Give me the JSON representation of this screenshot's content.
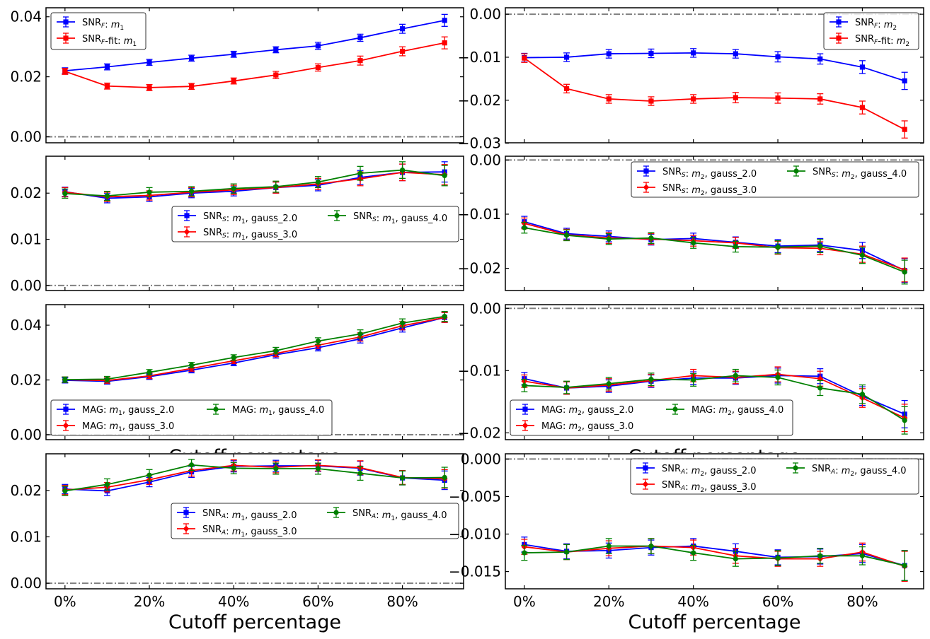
{
  "figure": {
    "x_ticks": [
      "0%",
      "20%",
      "40%",
      "60%",
      "80%"
    ],
    "xlabel": "Cutoff percentage"
  },
  "chart_data": [
    {
      "type": "line",
      "x": [
        0,
        10,
        20,
        30,
        40,
        50,
        60,
        70,
        80,
        90
      ],
      "ylim": [
        -0.002,
        0.043
      ],
      "yticks": [
        "0.00",
        "0.02",
        "0.04"
      ],
      "ytick_values": [
        0.0,
        0.02,
        0.04
      ],
      "legend_position": "upper-left",
      "series": [
        {
          "name": "SNR_F: m_1",
          "color": "#0000ff",
          "marker": "square",
          "values": [
            0.022,
            0.0233,
            0.0248,
            0.0262,
            0.0275,
            0.029,
            0.0303,
            0.033,
            0.036,
            0.0388
          ],
          "errors": [
            0.001,
            0.001,
            0.001,
            0.001,
            0.001,
            0.001,
            0.0012,
            0.0012,
            0.0015,
            0.002
          ]
        },
        {
          "name": "SNR_F-fit: m_1",
          "color": "#ff0000",
          "marker": "square",
          "values": [
            0.0218,
            0.0169,
            0.0164,
            0.0168,
            0.0186,
            0.0206,
            0.0231,
            0.0254,
            0.0285,
            0.0313
          ],
          "errors": [
            0.001,
            0.001,
            0.001,
            0.001,
            0.001,
            0.0012,
            0.0012,
            0.0015,
            0.0015,
            0.002
          ]
        }
      ]
    },
    {
      "type": "line",
      "x": [
        0,
        10,
        20,
        30,
        40,
        50,
        60,
        70,
        80,
        90
      ],
      "ylim": [
        -0.0299,
        0.0015
      ],
      "yticks": [
        "0.00",
        "−0.01",
        "−0.02",
        "−0.03"
      ],
      "ytick_values": [
        0.0,
        -0.01,
        -0.02,
        -0.03
      ],
      "legend_position": "upper-right",
      "series": [
        {
          "name": "SNR_F: m_2",
          "color": "#0000ff",
          "marker": "square",
          "values": [
            -0.0101,
            -0.01,
            -0.0092,
            -0.0091,
            -0.009,
            -0.0092,
            -0.0099,
            -0.0104,
            -0.0123,
            -0.0155
          ],
          "errors": [
            0.001,
            0.001,
            0.001,
            0.001,
            0.001,
            0.001,
            0.0012,
            0.0012,
            0.0015,
            0.002
          ]
        },
        {
          "name": "SNR_F-fit: m_2",
          "color": "#ff0000",
          "marker": "square",
          "values": [
            -0.0102,
            -0.0173,
            -0.0197,
            -0.0202,
            -0.0197,
            -0.0194,
            -0.0195,
            -0.0197,
            -0.0217,
            -0.0268
          ],
          "errors": [
            0.001,
            0.001,
            0.001,
            0.001,
            0.001,
            0.0012,
            0.0012,
            0.0012,
            0.0015,
            0.002
          ]
        }
      ]
    },
    {
      "type": "line",
      "x": [
        0,
        10,
        20,
        30,
        40,
        50,
        60,
        70,
        80,
        90
      ],
      "ylim": [
        -0.0011,
        0.028
      ],
      "yticks": [
        "0.00",
        "0.01",
        "0.02"
      ],
      "ytick_values": [
        0.0,
        0.01,
        0.02
      ],
      "legend_position": "center-right",
      "legend_cols": 2,
      "series": [
        {
          "name": "SNR_S: m_1, gauss_2.0",
          "color": "#0000ff",
          "marker": "square",
          "values": [
            0.0203,
            0.0189,
            0.0192,
            0.02,
            0.0204,
            0.0212,
            0.0217,
            0.0234,
            0.0245,
            0.0246
          ],
          "errors": [
            0.001,
            0.001,
            0.001,
            0.001,
            0.001,
            0.0012,
            0.0012,
            0.0015,
            0.0018,
            0.0022
          ]
        },
        {
          "name": "SNR_S: m_1, gauss_3.0",
          "color": "#ff0000",
          "marker": "diamond",
          "values": [
            0.0202,
            0.0192,
            0.0195,
            0.0202,
            0.0207,
            0.0212,
            0.022,
            0.0231,
            0.0245,
            0.024
          ],
          "errors": [
            0.001,
            0.001,
            0.001,
            0.001,
            0.001,
            0.0012,
            0.0012,
            0.0015,
            0.0018,
            0.0022
          ]
        },
        {
          "name": "SNR_S: m_1, gauss_4.0",
          "color": "#008000",
          "marker": "circle",
          "values": [
            0.0199,
            0.0194,
            0.0202,
            0.0204,
            0.021,
            0.0214,
            0.0224,
            0.0243,
            0.025,
            0.0238
          ],
          "errors": [
            0.001,
            0.001,
            0.001,
            0.001,
            0.001,
            0.0012,
            0.0012,
            0.0015,
            0.0018,
            0.0022
          ]
        }
      ]
    },
    {
      "type": "line",
      "x": [
        0,
        10,
        20,
        30,
        40,
        50,
        60,
        70,
        80,
        90
      ],
      "ylim": [
        -0.0241,
        0.0007
      ],
      "yticks": [
        "0.00",
        "−0.01",
        "−0.02"
      ],
      "ytick_values": [
        0.0,
        -0.01,
        -0.02
      ],
      "legend_position": "upper-right",
      "legend_cols": 2,
      "series": [
        {
          "name": "SNR_S: m_2, gauss_2.0",
          "color": "#0000ff",
          "marker": "square",
          "values": [
            -0.0114,
            -0.0136,
            -0.0141,
            -0.0147,
            -0.0145,
            -0.0152,
            -0.0159,
            -0.0157,
            -0.0167,
            -0.0204
          ],
          "errors": [
            0.001,
            0.001,
            0.001,
            0.001,
            0.001,
            0.001,
            0.0012,
            0.0012,
            0.0015,
            0.0022
          ]
        },
        {
          "name": "SNR_S: m_2, gauss_3.0",
          "color": "#ff0000",
          "marker": "diamond",
          "values": [
            -0.0117,
            -0.0138,
            -0.0144,
            -0.0146,
            -0.0149,
            -0.0153,
            -0.0162,
            -0.0163,
            -0.0174,
            -0.0203
          ],
          "errors": [
            0.001,
            0.001,
            0.001,
            0.001,
            0.001,
            0.001,
            0.0012,
            0.0012,
            0.0015,
            0.0022
          ]
        },
        {
          "name": "SNR_S: m_2, gauss_4.0",
          "color": "#008000",
          "marker": "circle",
          "values": [
            -0.0125,
            -0.0139,
            -0.0146,
            -0.0144,
            -0.0153,
            -0.016,
            -0.0161,
            -0.0159,
            -0.0176,
            -0.0207
          ],
          "errors": [
            0.001,
            0.001,
            0.001,
            0.001,
            0.001,
            0.001,
            0.0012,
            0.0012,
            0.0015,
            0.0022
          ]
        }
      ]
    },
    {
      "type": "line",
      "x": [
        0,
        10,
        20,
        30,
        40,
        50,
        60,
        70,
        80,
        90
      ],
      "ylim": [
        -0.0018,
        0.0475
      ],
      "yticks": [
        "0.00",
        "0.02",
        "0.04"
      ],
      "ytick_values": [
        0.0,
        0.02,
        0.04
      ],
      "legend_position": "lower-left",
      "legend_cols": 2,
      "series": [
        {
          "name": "MAG: m_1, gauss_2.0",
          "color": "#0000ff",
          "marker": "square",
          "values": [
            0.0199,
            0.0195,
            0.0212,
            0.0236,
            0.0262,
            0.0292,
            0.0318,
            0.035,
            0.039,
            0.0428
          ],
          "errors": [
            0.001,
            0.001,
            0.001,
            0.001,
            0.001,
            0.0012,
            0.0012,
            0.0015,
            0.0015,
            0.0018
          ]
        },
        {
          "name": "MAG: m_1, gauss_3.0",
          "color": "#ff0000",
          "marker": "diamond",
          "values": [
            0.0201,
            0.0198,
            0.0215,
            0.0242,
            0.027,
            0.0297,
            0.0327,
            0.0357,
            0.0398,
            0.0428
          ],
          "errors": [
            0.001,
            0.001,
            0.001,
            0.001,
            0.001,
            0.0012,
            0.0012,
            0.0015,
            0.0015,
            0.0018
          ]
        },
        {
          "name": "MAG: m_1, gauss_4.0",
          "color": "#008000",
          "marker": "circle",
          "values": [
            0.0201,
            0.0203,
            0.0228,
            0.0254,
            0.0282,
            0.0307,
            0.0342,
            0.0368,
            0.0408,
            0.0432
          ],
          "errors": [
            0.001,
            0.001,
            0.001,
            0.001,
            0.001,
            0.0012,
            0.0012,
            0.0015,
            0.0015,
            0.0018
          ]
        }
      ]
    },
    {
      "type": "line",
      "x": [
        0,
        10,
        20,
        30,
        40,
        50,
        60,
        70,
        80,
        90
      ],
      "ylim": [
        -0.0211,
        0.0006
      ],
      "yticks": [
        "0.00",
        "−0.01",
        "−0.02"
      ],
      "ytick_values": [
        0.0,
        -0.01,
        -0.02
      ],
      "legend_position": "lower-left",
      "legend_cols": 2,
      "series": [
        {
          "name": "MAG: m_2, gauss_2.0",
          "color": "#0000ff",
          "marker": "square",
          "values": [
            -0.0113,
            -0.0128,
            -0.0125,
            -0.0117,
            -0.0112,
            -0.0112,
            -0.0108,
            -0.0109,
            -0.0141,
            -0.017
          ],
          "errors": [
            0.001,
            0.001,
            0.001,
            0.001,
            0.001,
            0.001,
            0.0012,
            0.0012,
            0.0015,
            0.0022
          ]
        },
        {
          "name": "MAG: m_2, gauss_3.0",
          "color": "#ff0000",
          "marker": "diamond",
          "values": [
            -0.0117,
            -0.0128,
            -0.0123,
            -0.0116,
            -0.0108,
            -0.0111,
            -0.0106,
            -0.0113,
            -0.0144,
            -0.0176
          ],
          "errors": [
            0.001,
            0.001,
            0.001,
            0.001,
            0.001,
            0.001,
            0.0012,
            0.0012,
            0.0015,
            0.0022
          ]
        },
        {
          "name": "MAG: m_2, gauss_4.0",
          "color": "#008000",
          "marker": "circle",
          "values": [
            -0.0124,
            -0.0127,
            -0.0121,
            -0.0114,
            -0.0115,
            -0.0108,
            -0.0111,
            -0.0128,
            -0.0138,
            -0.018
          ],
          "errors": [
            0.001,
            0.001,
            0.001,
            0.001,
            0.001,
            0.001,
            0.0012,
            0.0012,
            0.0015,
            0.0022
          ]
        }
      ]
    },
    {
      "type": "line",
      "x": [
        0,
        10,
        20,
        30,
        40,
        50,
        60,
        70,
        80,
        90
      ],
      "ylim": [
        -0.0012,
        0.0279
      ],
      "yticks": [
        "0.00",
        "0.01",
        "0.02"
      ],
      "ytick_values": [
        0.0,
        0.01,
        0.02
      ],
      "legend_position": "center-right",
      "legend_cols": 2,
      "series": [
        {
          "name": "SNR_A: m_1, gauss_2.0",
          "color": "#0000ff",
          "marker": "square",
          "values": [
            0.0203,
            0.0199,
            0.0218,
            0.024,
            0.0252,
            0.0253,
            0.0253,
            0.0248,
            0.0227,
            0.0222
          ],
          "errors": [
            0.001,
            0.001,
            0.001,
            0.0012,
            0.0012,
            0.0012,
            0.0012,
            0.0015,
            0.0015,
            0.002
          ]
        },
        {
          "name": "SNR_A: m_1, gauss_3.0",
          "color": "#ff0000",
          "marker": "diamond",
          "values": [
            0.0201,
            0.0207,
            0.0223,
            0.0243,
            0.0254,
            0.025,
            0.0254,
            0.0249,
            0.0228,
            0.0225
          ],
          "errors": [
            0.001,
            0.001,
            0.001,
            0.0012,
            0.0012,
            0.0012,
            0.0012,
            0.0015,
            0.0015,
            0.002
          ]
        },
        {
          "name": "SNR_A: m_1, gauss_4.0",
          "color": "#008000",
          "marker": "circle",
          "values": [
            0.0199,
            0.0213,
            0.0233,
            0.0255,
            0.0248,
            0.0247,
            0.0247,
            0.0237,
            0.0227,
            0.0228
          ],
          "errors": [
            0.001,
            0.0012,
            0.0012,
            0.0012,
            0.0012,
            0.0012,
            0.0012,
            0.0015,
            0.0015,
            0.0022
          ]
        }
      ]
    },
    {
      "type": "line",
      "x": [
        0,
        10,
        20,
        30,
        40,
        50,
        60,
        70,
        80,
        90
      ],
      "ylim": [
        -0.0173,
        0.0007
      ],
      "yticks": [
        "0.000",
        "−0.005",
        "−0.010",
        "−0.015"
      ],
      "ytick_values": [
        0.0,
        -0.005,
        -0.01,
        -0.015
      ],
      "legend_position": "upper-right",
      "legend_cols": 2,
      "series": [
        {
          "name": "SNR_A: m_2, gauss_2.0",
          "color": "#0000ff",
          "marker": "square",
          "values": [
            -0.0114,
            -0.0123,
            -0.0122,
            -0.0118,
            -0.0116,
            -0.0123,
            -0.0131,
            -0.013,
            -0.0126,
            -0.0142
          ],
          "errors": [
            0.001,
            0.001,
            0.001,
            0.001,
            0.001,
            0.001,
            0.001,
            0.001,
            0.0012,
            0.002
          ]
        },
        {
          "name": "SNR_A: m_2, gauss_3.0",
          "color": "#ff0000",
          "marker": "diamond",
          "values": [
            -0.0117,
            -0.0124,
            -0.0119,
            -0.0116,
            -0.0118,
            -0.0129,
            -0.0133,
            -0.0133,
            -0.0124,
            -0.0143
          ],
          "errors": [
            0.001,
            0.001,
            0.001,
            0.001,
            0.001,
            0.001,
            0.001,
            0.001,
            0.0012,
            0.002
          ]
        },
        {
          "name": "SNR_A: m_2, gauss_4.0",
          "color": "#008000",
          "marker": "circle",
          "values": [
            -0.0125,
            -0.0124,
            -0.0116,
            -0.0116,
            -0.0125,
            -0.0133,
            -0.0132,
            -0.0129,
            -0.0129,
            -0.0142
          ],
          "errors": [
            0.001,
            0.001,
            0.001,
            0.001,
            0.001,
            0.001,
            0.001,
            0.001,
            0.0012,
            0.002
          ]
        }
      ]
    }
  ]
}
